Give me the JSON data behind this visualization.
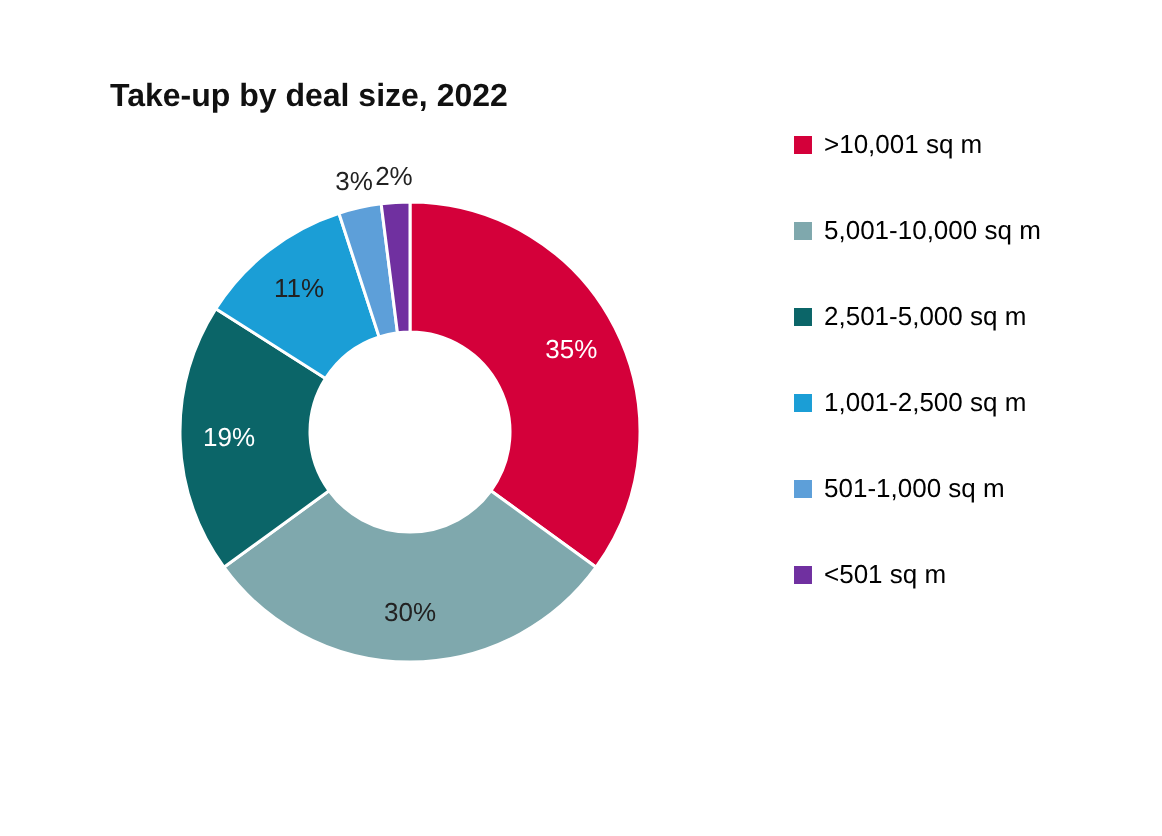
{
  "chart_data": {
    "type": "donut",
    "title": "Take-up by deal size, 2022",
    "categories": [
      ">10,001 sq m",
      "5,001-10,000 sq m",
      "2,501-5,000 sq m",
      "1,001-2,500 sq m",
      "501-1,000 sq m",
      "<501 sq m"
    ],
    "values": [
      35,
      30,
      19,
      11,
      3,
      2
    ],
    "colors": [
      "#d4003a",
      "#7fa8ad",
      "#0b6568",
      "#1b9ed6",
      "#5d9fd9",
      "#7030a0"
    ],
    "value_labels": [
      "35%",
      "30%",
      "19%",
      "11%",
      "3%",
      "2%"
    ],
    "legend": "right"
  }
}
